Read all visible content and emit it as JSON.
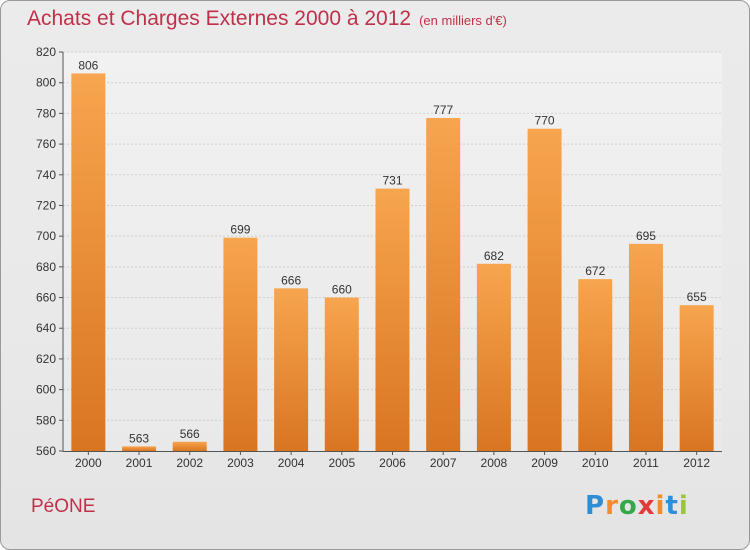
{
  "header": {
    "title": "Achats et Charges Externes 2000 à 2012",
    "subtitle": "(en milliers d'€)"
  },
  "footer": {
    "place": "PéONE",
    "logo_letters": [
      "P",
      "r",
      "o",
      "x",
      "i",
      "t",
      "i"
    ],
    "logo_colors": [
      "#2f8fd6",
      "#f28c28",
      "#36a84a",
      "#e23a3a",
      "#f28c28",
      "#2f8fd6",
      "#9bc53d"
    ]
  },
  "chart_data": {
    "type": "bar",
    "categories": [
      "2000",
      "2001",
      "2002",
      "2003",
      "2004",
      "2005",
      "2006",
      "2007",
      "2008",
      "2009",
      "2010",
      "2011",
      "2012"
    ],
    "values": [
      806,
      563,
      566,
      699,
      666,
      660,
      731,
      777,
      682,
      770,
      672,
      695,
      655
    ],
    "ylim": [
      560,
      820
    ],
    "yticks": [
      560,
      580,
      600,
      620,
      640,
      660,
      680,
      700,
      720,
      740,
      760,
      780,
      800,
      820
    ],
    "grid": true,
    "bar_color_top": "#f7a54e",
    "bar_color_bottom": "#d97521"
  }
}
